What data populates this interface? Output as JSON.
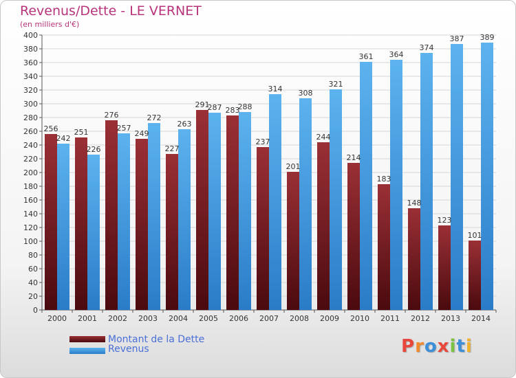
{
  "header": {
    "title": "Revenus/Dette - LE VERNET",
    "subtitle": "(en milliers d'€)"
  },
  "colors": {
    "dette": "#7a1f24",
    "revenus": "#4aa3e2"
  },
  "chart_data": {
    "type": "bar",
    "categories": [
      "2000",
      "2001",
      "2002",
      "2003",
      "2004",
      "2005",
      "2006",
      "2007",
      "2008",
      "2009",
      "2010",
      "2011",
      "2012",
      "2013",
      "2014"
    ],
    "series": [
      {
        "name": "Montant de la Dette",
        "values": [
          256,
          251,
          276,
          249,
          227,
          291,
          283,
          237,
          201,
          244,
          214,
          183,
          148,
          123,
          101
        ]
      },
      {
        "name": "Revenus",
        "values": [
          242,
          226,
          257,
          272,
          263,
          287,
          288,
          314,
          308,
          321,
          361,
          364,
          374,
          387,
          389
        ]
      }
    ],
    "ylim": [
      0,
      400
    ],
    "ytick_step": 20,
    "grid": true,
    "legend_position": "bottom-left"
  },
  "legend": {
    "items": [
      "Montant de la Dette",
      "Revenus"
    ]
  },
  "logo": {
    "letters": [
      "P",
      "r",
      "o",
      "x",
      "i",
      "t",
      "i"
    ],
    "colors": [
      "#e8473c",
      "#f08a2c",
      "#3c8fd8",
      "#e8473c",
      "#7cc242",
      "#3c8fd8",
      "#f0b22c"
    ]
  }
}
